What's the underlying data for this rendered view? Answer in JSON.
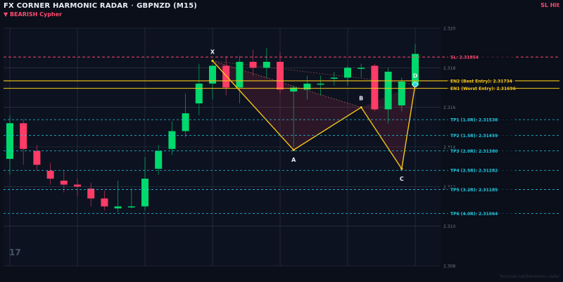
{
  "header": {
    "title": "FX CORNER HARMONIC RADAR",
    "separator": "·",
    "symbol": "GBPNZD (M15)",
    "direction_arrow": "▼",
    "direction": "BEARISH",
    "pattern": "Cypher",
    "status": "SL Hit"
  },
  "footer": {
    "url": "fxcorner.net/harmonic-radar"
  },
  "logo": {
    "text": "17"
  },
  "colors": {
    "background": "#0b0f1a",
    "bull": "#00d96c",
    "bear": "#ff3b66",
    "pattern_line": "#f5c518",
    "entry": "#f5c518",
    "sl": "#ff4a6e",
    "tp": "#22c7e0",
    "grid": "#3a4252"
  },
  "chart_data": {
    "type": "candlestick",
    "symbol": "GBPNZD",
    "timeframe": "M15",
    "ylim": [
      2.308,
      2.32
    ],
    "y_ticks": [
      "2.308",
      "2.310",
      "2.312",
      "2.314",
      "2.316",
      "2.318",
      "2.320"
    ],
    "candles": [
      {
        "o": 2.3134,
        "h": 2.3156,
        "l": 2.3126,
        "c": 2.3152
      },
      {
        "o": 2.3152,
        "h": 2.3154,
        "l": 2.3131,
        "c": 2.3139
      },
      {
        "o": 2.3138,
        "h": 2.3141,
        "l": 2.3128,
        "c": 2.3131
      },
      {
        "o": 2.3128,
        "h": 2.3132,
        "l": 2.3121,
        "c": 2.3124
      },
      {
        "o": 2.3123,
        "h": 2.3128,
        "l": 2.3117,
        "c": 2.3121
      },
      {
        "o": 2.3121,
        "h": 2.3124,
        "l": 2.3115,
        "c": 2.312
      },
      {
        "o": 2.3119,
        "h": 2.3122,
        "l": 2.311,
        "c": 2.3114
      },
      {
        "o": 2.3114,
        "h": 2.3118,
        "l": 2.3108,
        "c": 2.311
      },
      {
        "o": 2.3109,
        "h": 2.3123,
        "l": 2.3107,
        "c": 2.311
      },
      {
        "o": 2.311,
        "h": 2.3119,
        "l": 2.3109,
        "c": 2.311
      },
      {
        "o": 2.311,
        "h": 2.3135,
        "l": 2.3108,
        "c": 2.3124
      },
      {
        "o": 2.3129,
        "h": 2.3141,
        "l": 2.3126,
        "c": 2.3138
      },
      {
        "o": 2.3139,
        "h": 2.3153,
        "l": 2.3136,
        "c": 2.3148
      },
      {
        "o": 2.3148,
        "h": 2.3167,
        "l": 2.3145,
        "c": 2.3157
      },
      {
        "o": 2.3162,
        "h": 2.3182,
        "l": 2.3156,
        "c": 2.3172
      },
      {
        "o": 2.3172,
        "h": 2.3182,
        "l": 2.3164,
        "c": 2.3181
      },
      {
        "o": 2.3181,
        "h": 2.3186,
        "l": 2.3166,
        "c": 2.317
      },
      {
        "o": 2.317,
        "h": 2.3186,
        "l": 2.3162,
        "c": 2.3183
      },
      {
        "o": 2.3183,
        "h": 2.3189,
        "l": 2.3176,
        "c": 2.318
      },
      {
        "o": 2.318,
        "h": 2.319,
        "l": 2.3175,
        "c": 2.3183
      },
      {
        "o": 2.3183,
        "h": 2.3188,
        "l": 2.3167,
        "c": 2.3169
      },
      {
        "o": 2.3168,
        "h": 2.3171,
        "l": 2.314,
        "c": 2.317
      },
      {
        "o": 2.3169,
        "h": 2.3176,
        "l": 2.3164,
        "c": 2.3172
      },
      {
        "o": 2.3172,
        "h": 2.3176,
        "l": 2.3166,
        "c": 2.3172
      },
      {
        "o": 2.3175,
        "h": 2.3178,
        "l": 2.3171,
        "c": 2.3175
      },
      {
        "o": 2.3175,
        "h": 2.3181,
        "l": 2.3171,
        "c": 2.318
      },
      {
        "o": 2.318,
        "h": 2.3182,
        "l": 2.3175,
        "c": 2.318
      },
      {
        "o": 2.3181,
        "h": 2.3182,
        "l": 2.3158,
        "c": 2.3159
      },
      {
        "o": 2.3159,
        "h": 2.318,
        "l": 2.3152,
        "c": 2.3178
      },
      {
        "o": 2.3161,
        "h": 2.3175,
        "l": 2.3158,
        "c": 2.3173
      },
      {
        "o": 2.3171,
        "h": 2.3192,
        "l": 2.317,
        "c": 2.3187
      }
    ],
    "pattern": {
      "name": "Cypher",
      "points": [
        {
          "label": "X",
          "index": 15,
          "price": 2.31835
        },
        {
          "label": "A",
          "index": 21,
          "price": 2.31385
        },
        {
          "label": "B",
          "index": 26,
          "price": 2.316
        },
        {
          "label": "C",
          "index": 29,
          "price": 2.3129
        },
        {
          "label": "D",
          "index": 30,
          "price": 2.31715
        }
      ]
    },
    "levels": [
      {
        "key": "sl",
        "label": "SL: 2.31854",
        "price": 2.31854,
        "kind": "sl"
      },
      {
        "key": "en2",
        "label": "EN2 (Best Entry): 2.31734",
        "price": 2.31734,
        "kind": "entry"
      },
      {
        "key": "en1",
        "label": "EN1 (Worst Entry): 2.31696",
        "price": 2.31696,
        "kind": "entry"
      },
      {
        "key": "tp1",
        "label": "TP1 (1.0R): 2.31538",
        "price": 2.31538,
        "kind": "tp"
      },
      {
        "key": "tp2",
        "label": "TP2 (1.5R): 2.31459",
        "price": 2.31459,
        "kind": "tp"
      },
      {
        "key": "tp3",
        "label": "TP3 (2.0R): 2.31380",
        "price": 2.3138,
        "kind": "tp"
      },
      {
        "key": "tp4",
        "label": "TP4 (2.5R): 2.31282",
        "price": 2.31282,
        "kind": "tp"
      },
      {
        "key": "tp5",
        "label": "TP5 (3.2R): 2.31185",
        "price": 2.31185,
        "kind": "tp"
      },
      {
        "key": "tp6",
        "label": "TP6 (4.0R): 2.31064",
        "price": 2.31064,
        "kind": "tp"
      }
    ],
    "grid": true
  }
}
